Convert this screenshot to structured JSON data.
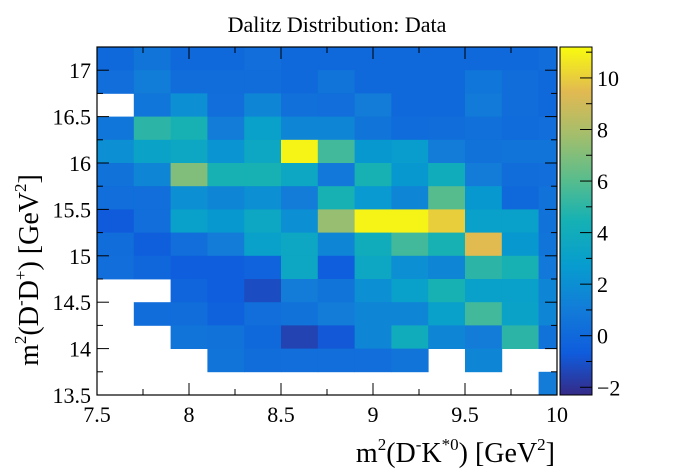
{
  "chart_data": {
    "type": "heatmap",
    "title": "Dalitz Distribution: Data",
    "xlabel": {
      "base": "m",
      "sup1": "2",
      "mid": "(D",
      "sup2": "-",
      "mid2": "K",
      "sup3": "*0",
      "tail": ") [GeV",
      "sup4": "2",
      "end": "]"
    },
    "ylabel": {
      "base": "m",
      "sup1": "2",
      "mid": "(D",
      "sup2": "-",
      "mid2": "D",
      "sup3": "+",
      "tail": ") [GeV",
      "sup4": "2",
      "end": "]"
    },
    "xlim": [
      7.5,
      10
    ],
    "ylim": [
      13.5,
      17.25
    ],
    "x_ticks": [
      "7.5",
      "8",
      "8.5",
      "9",
      "9.5",
      "10"
    ],
    "x_tick_values": [
      7.5,
      8,
      8.5,
      9,
      9.5,
      10
    ],
    "y_ticks": [
      "13.5",
      "14",
      "14.5",
      "15",
      "15.5",
      "16",
      "16.5",
      "17"
    ],
    "y_tick_values": [
      13.5,
      14,
      14.5,
      15,
      15.5,
      16,
      16.5,
      17
    ],
    "z_range": [
      -2.3,
      11.2
    ],
    "z_ticks": [
      "−2",
      "0",
      "2",
      "4",
      "6",
      "8",
      "10"
    ],
    "z_tick_values": [
      -2,
      0,
      2,
      4,
      6,
      8,
      10
    ],
    "x_bins": {
      "start": 7.5,
      "width": 0.2
    },
    "y_bins": {
      "start": 13.5,
      "width": 0.25
    },
    "values_note": "rows listed from y=17.0-17.25 (top) to 13.5-13.75 (bottom); null = empty bin",
    "values": [
      [
        0.0,
        0.6,
        0.0,
        0.0,
        0.3,
        0.0,
        0.0,
        0.0,
        0.0,
        0.0,
        0.0,
        0.0,
        0.2
      ],
      [
        0.3,
        1.1,
        0.2,
        0.2,
        0.2,
        0.0,
        0.6,
        0.0,
        0.0,
        0.0,
        0.7,
        0.2,
        0.0
      ],
      [
        null,
        0.7,
        2.0,
        0.3,
        1.5,
        0.4,
        0.3,
        1.0,
        0.0,
        0.0,
        0.9,
        0.2,
        0.0
      ],
      [
        0.7,
        5.0,
        4.5,
        1.0,
        3.0,
        1.5,
        1.5,
        0.6,
        0.1,
        0.2,
        0.4,
        0.1,
        0.3
      ],
      [
        2.0,
        3.2,
        3.5,
        2.3,
        3.5,
        11.0,
        5.5,
        2.5,
        2.8,
        1.0,
        0.5,
        0.6,
        0.6
      ],
      [
        0.5,
        1.5,
        7.0,
        4.5,
        4.5,
        3.5,
        0.8,
        4.5,
        2.5,
        4.0,
        1.0,
        0.2,
        0.3
      ],
      [
        0.3,
        0.3,
        2.0,
        1.5,
        2.0,
        1.0,
        4.5,
        2.6,
        1.5,
        6.0,
        2.5,
        0.0,
        0.5
      ],
      [
        -0.7,
        0.3,
        3.0,
        2.5,
        3.5,
        2.0,
        7.5,
        11.0,
        11.0,
        10.0,
        3.0,
        3.0,
        0.5
      ],
      [
        0.2,
        -0.5,
        0.3,
        1.0,
        3.0,
        3.5,
        1.5,
        4.0,
        5.5,
        4.5,
        9.5,
        2.5,
        0.6
      ],
      [
        0.3,
        -0.1,
        -0.6,
        -0.6,
        -0.3,
        3.5,
        -0.6,
        3.5,
        2.0,
        1.5,
        5.0,
        4.5,
        0.8
      ],
      [
        null,
        null,
        -0.2,
        -0.6,
        -1.2,
        1.0,
        0.6,
        2.0,
        3.0,
        4.5,
        3.0,
        3.0,
        1.5
      ],
      [
        null,
        0.2,
        0.2,
        -0.4,
        0.3,
        0.5,
        1.0,
        1.5,
        1.5,
        3.0,
        5.5,
        3.2,
        1.5
      ],
      [
        null,
        null,
        0.6,
        0.5,
        0.0,
        -1.5,
        -0.8,
        1.5,
        4.0,
        1.5,
        1.0,
        5.0,
        0.5
      ],
      [
        null,
        null,
        null,
        0.6,
        0.2,
        0.3,
        0.3,
        0.3,
        0.6,
        null,
        1.5,
        null,
        null
      ],
      [
        null,
        null,
        null,
        null,
        null,
        null,
        null,
        null,
        null,
        null,
        null,
        null,
        1.0
      ]
    ]
  }
}
